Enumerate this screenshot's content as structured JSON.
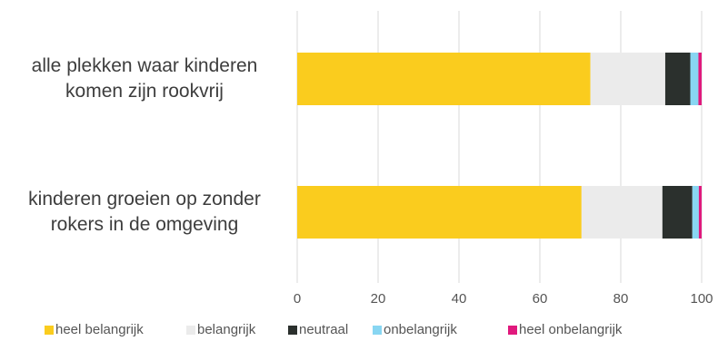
{
  "chart_data": {
    "type": "bar",
    "orientation": "horizontal",
    "stacked": true,
    "categories": [
      [
        "alle plekken waar kinderen",
        "komen zijn rookvrij"
      ],
      [
        "kinderen groeien op zonder",
        "rokers in de omgeving"
      ]
    ],
    "series": [
      {
        "name": "heel belangrijk",
        "color": "#FACC1E",
        "values": [
          72.5,
          70.3
        ]
      },
      {
        "name": "belangrijk",
        "color": "#EBEBEB",
        "values": [
          18.5,
          20.0
        ]
      },
      {
        "name": "neutraal",
        "color": "#2B302D",
        "values": [
          6.2,
          7.4
        ]
      },
      {
        "name": "onbelangrijk",
        "color": "#88D6F2",
        "values": [
          2.0,
          1.6
        ]
      },
      {
        "name": "heel onbelangrijk",
        "color": "#E0197D",
        "values": [
          0.8,
          0.7
        ]
      }
    ],
    "xlim": [
      0,
      100
    ],
    "xticks": [
      0,
      20,
      40,
      60,
      80,
      100
    ],
    "grid": true,
    "legend": "bottom",
    "title": "",
    "xlabel": "",
    "ylabel": ""
  }
}
